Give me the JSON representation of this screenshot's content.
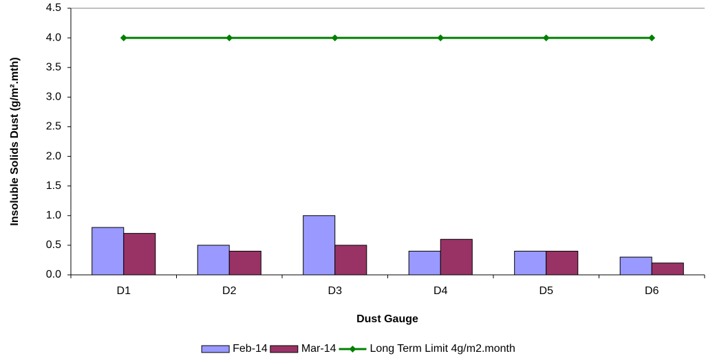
{
  "chart_data": {
    "type": "bar",
    "y_label": "Insoluble Solids Dust (g/m².mth)",
    "x_label": "Dust Gauge",
    "categories": [
      "D1",
      "D2",
      "D3",
      "D4",
      "D5",
      "D6"
    ],
    "series": [
      {
        "name": "Feb-14",
        "type": "bar",
        "color": "#9999ff",
        "values": [
          0.8,
          0.5,
          1.0,
          0.4,
          0.4,
          0.3
        ]
      },
      {
        "name": "Mar-14",
        "type": "bar",
        "color": "#993366",
        "values": [
          0.7,
          0.4,
          0.5,
          0.6,
          0.4,
          0.2
        ]
      },
      {
        "name": "Long Term Limit 4g/m2.month",
        "type": "line",
        "color": "#008000",
        "values": [
          4,
          4,
          4,
          4,
          4,
          4
        ]
      }
    ],
    "ylim": [
      0,
      4.5
    ],
    "yticks": [
      {
        "value": 0,
        "label": "0.0"
      },
      0.5,
      {
        "value": 1,
        "label": "1.0"
      },
      1.5,
      {
        "value": 2,
        "label": "2.0"
      },
      2.5,
      {
        "value": 3,
        "label": "3.0"
      },
      3.5,
      {
        "value": 4,
        "label": "4.0"
      },
      4.5
    ],
    "grid": false,
    "legend": "bottom"
  }
}
